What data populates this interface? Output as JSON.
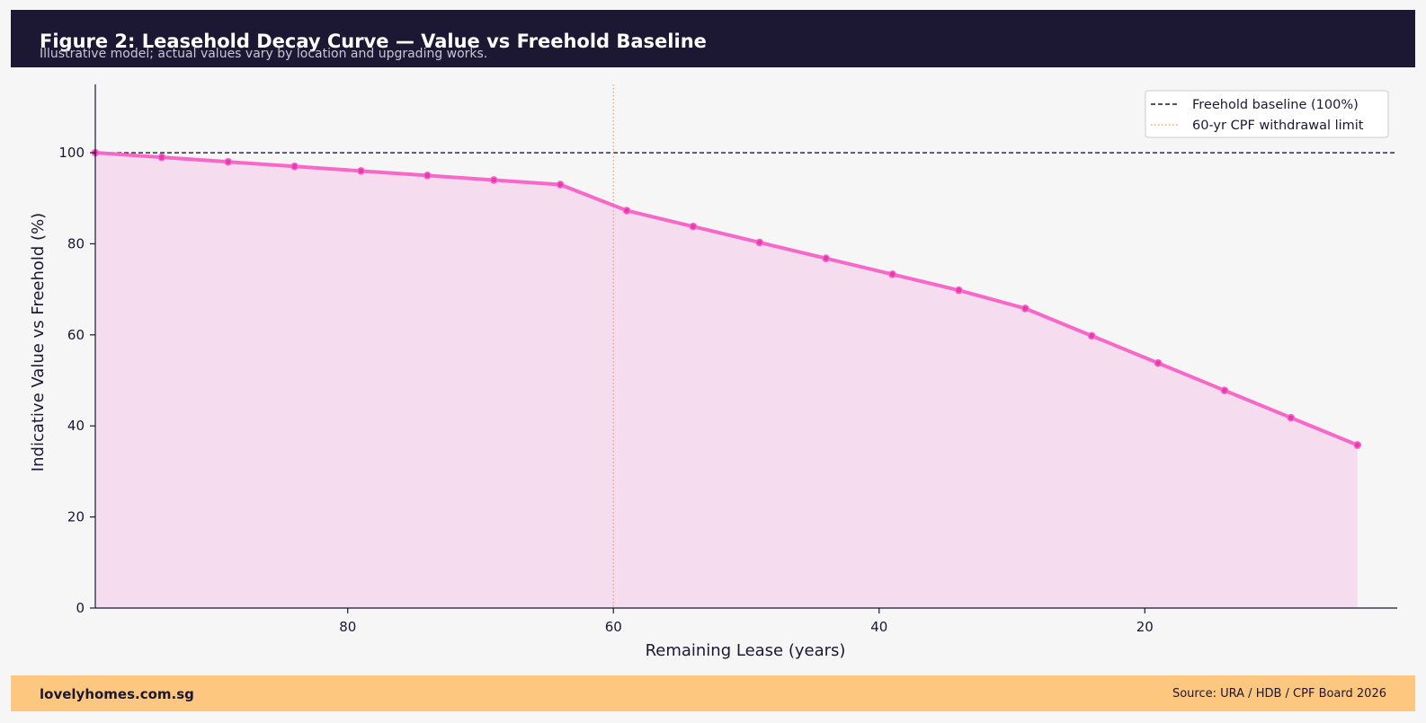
{
  "header": {
    "title": "Figure 2: Leasehold Decay Curve — Value vs Freehold Baseline",
    "subtitle": "Illustrative model; actual values vary by location and upgrading works."
  },
  "footer": {
    "brand": "lovelyhomes.com.sg",
    "source": "Source: URA / HDB / CPF Board 2026"
  },
  "colors": {
    "header_bg": "#1c1733",
    "footer_bg": "#fdc77f",
    "curve": "#f768c8",
    "curve_marker": "#e83ab0",
    "fill": "#f5dcee",
    "baseline": "#1c1733",
    "cpf_line": "#f5a86b"
  },
  "chart_data": {
    "type": "area",
    "xlabel": "Remaining Lease (years)",
    "ylabel": "Indicative Value vs Freehold (%)",
    "xlim": [
      99,
      1
    ],
    "ylim": [
      0,
      115
    ],
    "x_reversed": true,
    "xticks": [
      80,
      60,
      40,
      20
    ],
    "yticks": [
      0,
      20,
      40,
      60,
      80,
      100
    ],
    "grid": false,
    "legend_position": "top-right",
    "series": [
      {
        "x": [
          99,
          94,
          89,
          84,
          79,
          74,
          69,
          64,
          59,
          54,
          49,
          44,
          39,
          34,
          29,
          24,
          19,
          14,
          9,
          4
        ],
        "values": [
          100,
          99,
          98,
          97,
          96,
          95,
          94,
          93,
          87.3,
          83.8,
          80.3,
          76.8,
          73.3,
          69.8,
          65.8,
          59.8,
          53.8,
          47.8,
          41.8,
          35.8
        ]
      }
    ],
    "reference_lines": [
      {
        "orientation": "horizontal",
        "value": 100,
        "style": "dashed",
        "label": "Freehold baseline (100%)"
      },
      {
        "orientation": "vertical",
        "value": 60,
        "style": "dotted",
        "label": "60-yr CPF withdrawal limit"
      }
    ]
  }
}
